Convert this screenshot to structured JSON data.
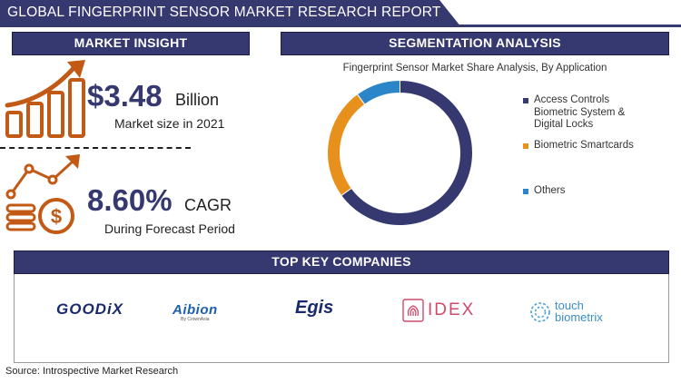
{
  "header": {
    "title": "GLOBAL FINGERPRINT SENSOR MARKET RESEARCH REPORT"
  },
  "market_insight": {
    "heading": "MARKET INSIGHT",
    "market_size": {
      "value": "$3.48",
      "unit": "Billion",
      "label": "Market size in 2021"
    },
    "cagr": {
      "value": "8.60%",
      "unit": "CAGR",
      "label": "During Forecast Period"
    }
  },
  "segmentation": {
    "heading": "SEGMENTATION ANALYSIS"
  },
  "chart_data": {
    "type": "pie",
    "title": "Fingerprint Sensor Market Share Analysis, By Application",
    "style": "donut",
    "legend_position": "right",
    "categories": [
      "Access Controls Biometric System & Digital Locks",
      "Biometric Smartcards",
      "Others"
    ],
    "values": [
      65,
      25,
      10
    ],
    "colors": [
      "#363970",
      "#e8901c",
      "#2a86c8"
    ]
  },
  "companies": {
    "heading": "TOP KEY COMPANIES",
    "logos": [
      {
        "name": "GOODiX"
      },
      {
        "name": "Aibion",
        "tagline": "By CrownAsia"
      },
      {
        "name": "Egis"
      },
      {
        "name": "IDEX"
      },
      {
        "name_line1": "touch",
        "name_line2": "biometrix"
      }
    ]
  },
  "footer": {
    "source": "Source: Introspective Market Research"
  },
  "colors": {
    "navy": "#363970",
    "orange": "#c25a16",
    "blue": "#2a86c8"
  }
}
